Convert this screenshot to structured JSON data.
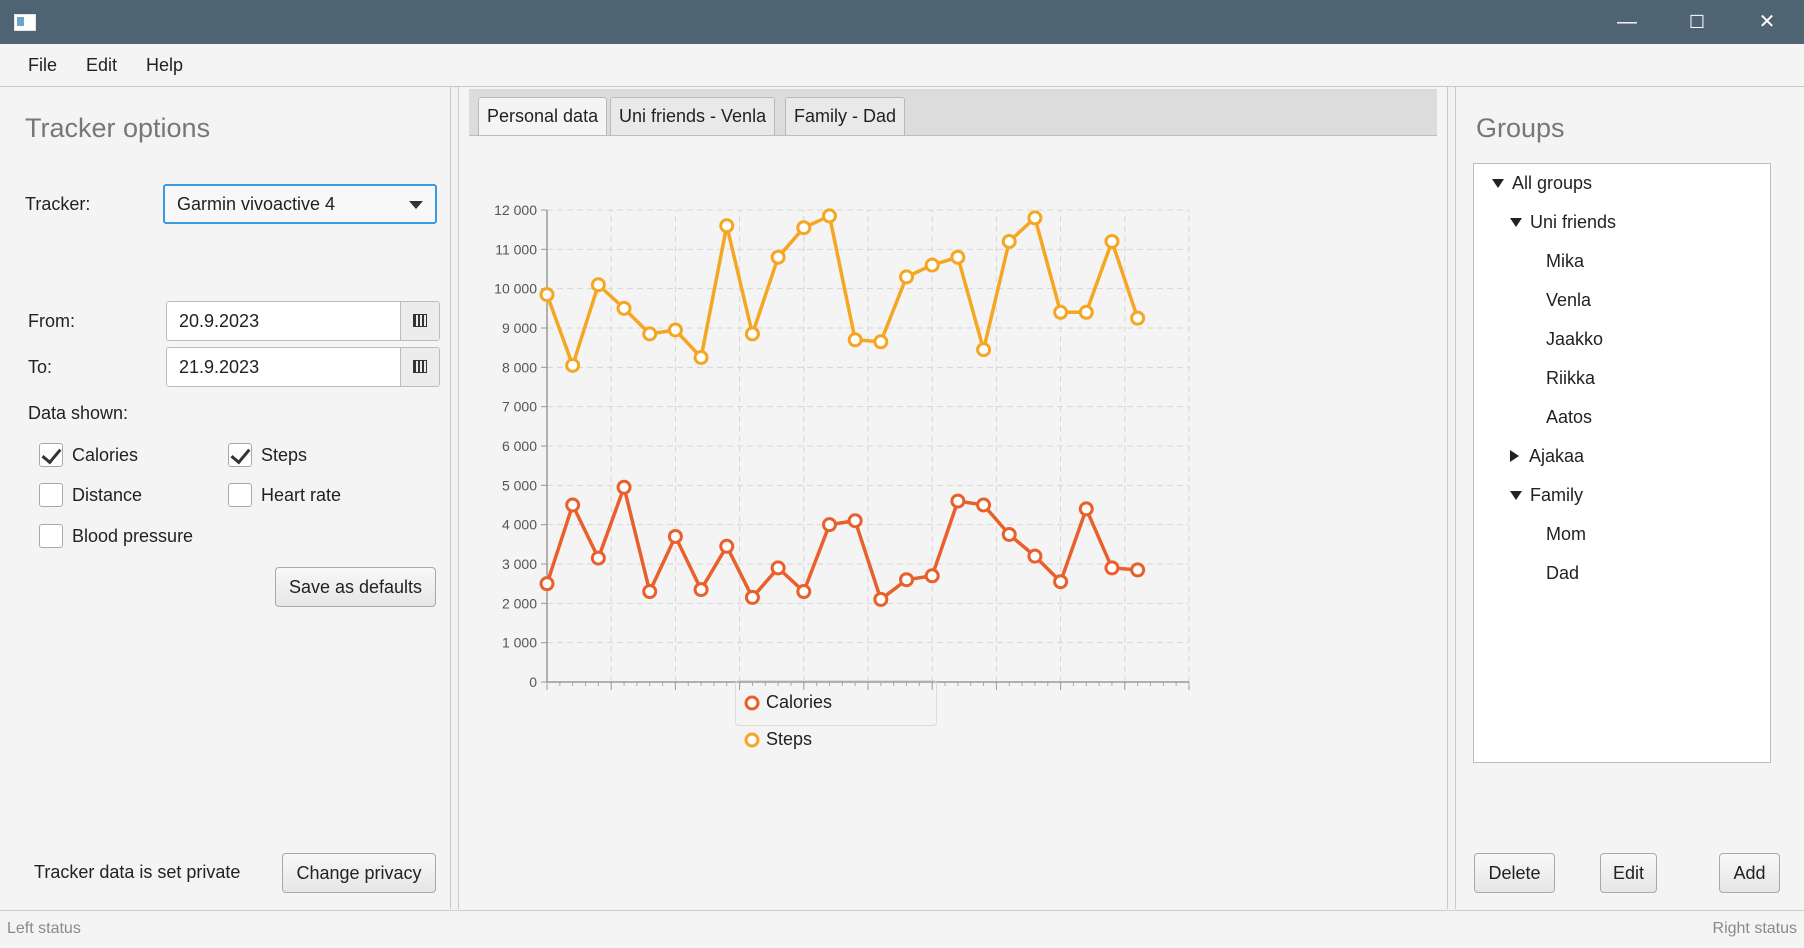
{
  "window": {
    "minimize": "—",
    "maximize": "☐",
    "close": "✕"
  },
  "menu": [
    "File",
    "Edit",
    "Help"
  ],
  "left": {
    "title": "Tracker options",
    "tracker_label": "Tracker:",
    "tracker_value": "Garmin vivoactive 4",
    "from_label": "From:",
    "from_value": "20.9.2023",
    "to_label": "To:",
    "to_value": "21.9.2023",
    "data_shown_label": "Data shown:",
    "checkboxes": [
      {
        "label": "Calories",
        "checked": true
      },
      {
        "label": "Steps",
        "checked": true
      },
      {
        "label": "Distance",
        "checked": false
      },
      {
        "label": "Heart rate",
        "checked": false
      },
      {
        "label": "Blood pressure",
        "checked": false
      }
    ],
    "save_defaults": "Save as defaults",
    "privacy_text": "Tracker data is set private",
    "change_privacy": "Change privacy"
  },
  "tabs": [
    "Personal data",
    "Uni friends - Venla",
    "Family - Dad"
  ],
  "right": {
    "title": "Groups",
    "tree": [
      {
        "label": "All groups",
        "level": 0,
        "toggle": "expanded"
      },
      {
        "label": "Uni friends",
        "level": 1,
        "toggle": "expanded"
      },
      {
        "label": "Mika",
        "level": 2,
        "toggle": "none"
      },
      {
        "label": "Venla",
        "level": 2,
        "toggle": "none"
      },
      {
        "label": "Jaakko",
        "level": 2,
        "toggle": "none"
      },
      {
        "label": "Riikka",
        "level": 2,
        "toggle": "none"
      },
      {
        "label": "Aatos",
        "level": 2,
        "toggle": "none"
      },
      {
        "label": "Ajakaa",
        "level": 1,
        "toggle": "collapsed"
      },
      {
        "label": "Family",
        "level": 1,
        "toggle": "expanded"
      },
      {
        "label": "Mom",
        "level": 2,
        "toggle": "none"
      },
      {
        "label": "Dad",
        "level": 2,
        "toggle": "none"
      }
    ],
    "delete": "Delete",
    "edit": "Edit",
    "add": "Add"
  },
  "status": {
    "left": "Left status",
    "right": "Right status"
  },
  "chart_data": {
    "type": "line",
    "xlim": [
      0,
      25
    ],
    "ylim": [
      0,
      12000
    ],
    "x_ticks": [
      "0,0",
      "2,5",
      "5,0",
      "7,5",
      "10,0",
      "12,5",
      "15,0",
      "17,5",
      "20,0",
      "22,5",
      "25,0"
    ],
    "y_ticks": [
      "0",
      "1 000",
      "2 000",
      "3 000",
      "4 000",
      "5 000",
      "6 000",
      "7 000",
      "8 000",
      "9 000",
      "10 000",
      "11 000",
      "12 000"
    ],
    "grid": true,
    "legend": "bottom",
    "series": [
      {
        "name": "Calories",
        "color": "#e8602c",
        "x": [
          0,
          1,
          2,
          3,
          4,
          5,
          6,
          7,
          8,
          9,
          10,
          11,
          12,
          13,
          14,
          15,
          16,
          17,
          18,
          19,
          20,
          21,
          22,
          23
        ],
        "values": [
          2500,
          4500,
          3150,
          4950,
          2300,
          3700,
          2350,
          3450,
          2150,
          2900,
          2300,
          4000,
          4100,
          2100,
          2600,
          2700,
          4600,
          4500,
          3750,
          3200,
          2550,
          4400,
          2900,
          2850
        ]
      },
      {
        "name": "Steps",
        "color": "#f5a623",
        "x": [
          0,
          1,
          2,
          3,
          4,
          5,
          6,
          7,
          8,
          9,
          10,
          11,
          12,
          13,
          14,
          15,
          16,
          17,
          18,
          19,
          20,
          21,
          22,
          23
        ],
        "values": [
          9850,
          8050,
          10100,
          9500,
          8850,
          8950,
          8250,
          11600,
          8850,
          10800,
          11550,
          11850,
          8700,
          8650,
          10300,
          10600,
          10800,
          8450,
          11200,
          11800,
          9400,
          9400,
          11200,
          9250
        ]
      }
    ]
  }
}
